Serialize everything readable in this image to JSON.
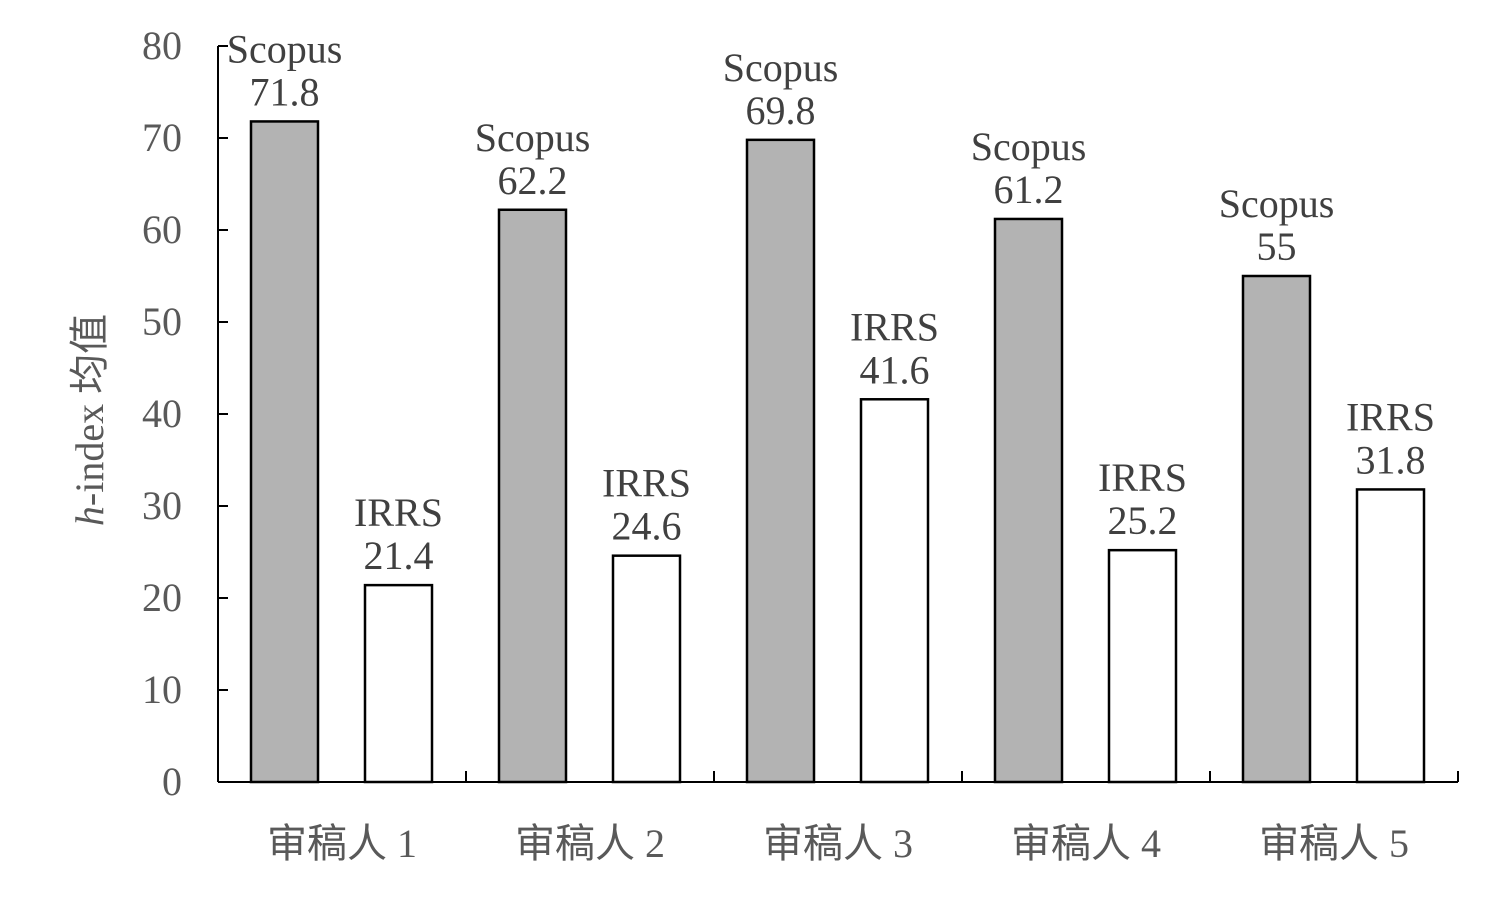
{
  "chart_data": {
    "type": "bar",
    "title": "",
    "xlabel": "",
    "ylabel_italic": "h",
    "ylabel_rest": "-index 均值",
    "ylim": [
      0,
      80
    ],
    "yticks": [
      0,
      10,
      20,
      30,
      40,
      50,
      60,
      70,
      80
    ],
    "grid": false,
    "categories": [
      "审稿人 1",
      "审稿人 2",
      "审稿人 3",
      "审稿人 4",
      "审稿人 5"
    ],
    "series": [
      {
        "name": "Scopus",
        "color": "#b3b3b3",
        "values": [
          71.8,
          62.2,
          69.8,
          61.2,
          55
        ]
      },
      {
        "name": "IRRS",
        "color": "#ffffff",
        "values": [
          21.4,
          24.6,
          41.6,
          25.2,
          31.8
        ]
      }
    ]
  }
}
